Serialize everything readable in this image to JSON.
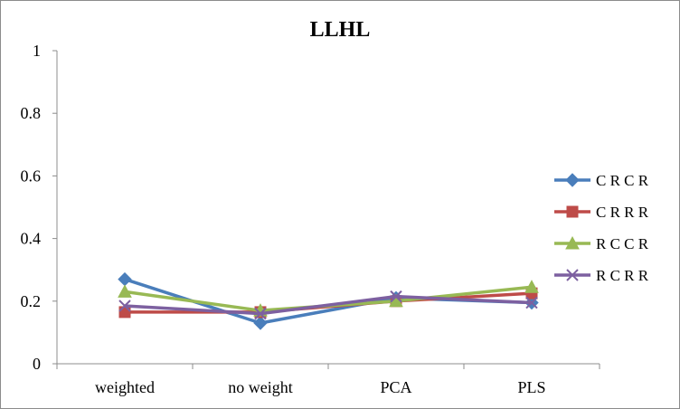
{
  "chart_data": {
    "type": "line",
    "title": "LLHL",
    "xlabel": "",
    "ylabel": "",
    "categories": [
      "weighted",
      "no weight",
      "PCA",
      "PLS"
    ],
    "ylim": [
      0,
      1
    ],
    "yticks": [
      "0",
      "0.2",
      "0.4",
      "0.6",
      "0.8",
      "1"
    ],
    "grid": false,
    "legend_position": "right",
    "series": [
      {
        "name": "C R C R",
        "color": "#4a7ebb",
        "marker": "diamond",
        "values": [
          0.27,
          0.13,
          0.21,
          0.195
        ]
      },
      {
        "name": "C R R R",
        "color": "#be4b48",
        "marker": "square",
        "values": [
          0.165,
          0.165,
          0.2,
          0.225
        ]
      },
      {
        "name": "R C C R",
        "color": "#98b954",
        "marker": "triangle",
        "values": [
          0.23,
          0.17,
          0.2,
          0.245
        ]
      },
      {
        "name": "R C R R",
        "color": "#7d60a0",
        "marker": "x",
        "values": [
          0.185,
          0.16,
          0.215,
          0.195
        ]
      }
    ]
  }
}
